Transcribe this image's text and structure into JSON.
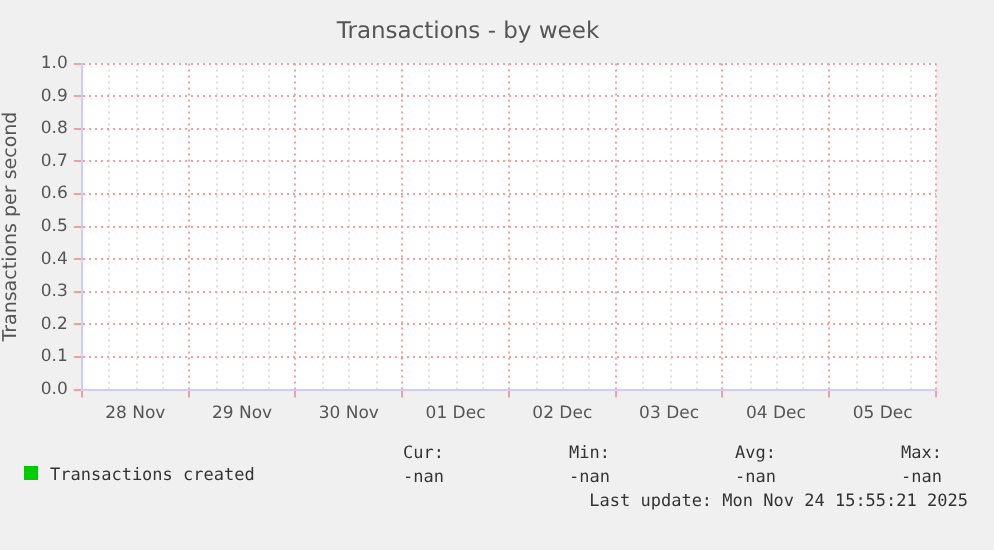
{
  "chart_data": {
    "type": "line",
    "title": "Transactions - by week",
    "ylabel": "Transactions per second",
    "categories": [
      "28 Nov",
      "29 Nov",
      "30 Nov",
      "01 Dec",
      "02 Dec",
      "03 Dec",
      "04 Dec",
      "05 Dec"
    ],
    "series": [
      {
        "name": "Transactions created",
        "color": "#00cc00",
        "values": [
          null,
          null,
          null,
          null,
          null,
          null,
          null,
          null
        ]
      }
    ],
    "ylim": [
      0,
      1
    ],
    "yticks": [
      {
        "value": 0,
        "label": "0.0"
      },
      0.1,
      0.2,
      0.3,
      0.4,
      0.5,
      0.6,
      0.7,
      0.8,
      0.9,
      {
        "value": 1,
        "label": "1.0"
      }
    ],
    "grid": true,
    "legend": "bottom left",
    "annotations": [
      "Cur:",
      "Min:",
      "Avg:",
      "Max:",
      "-nan",
      "-nan",
      "-nan",
      "-nan",
      "Last update: Mon Nov 24 15:55:21 2025"
    ]
  }
}
